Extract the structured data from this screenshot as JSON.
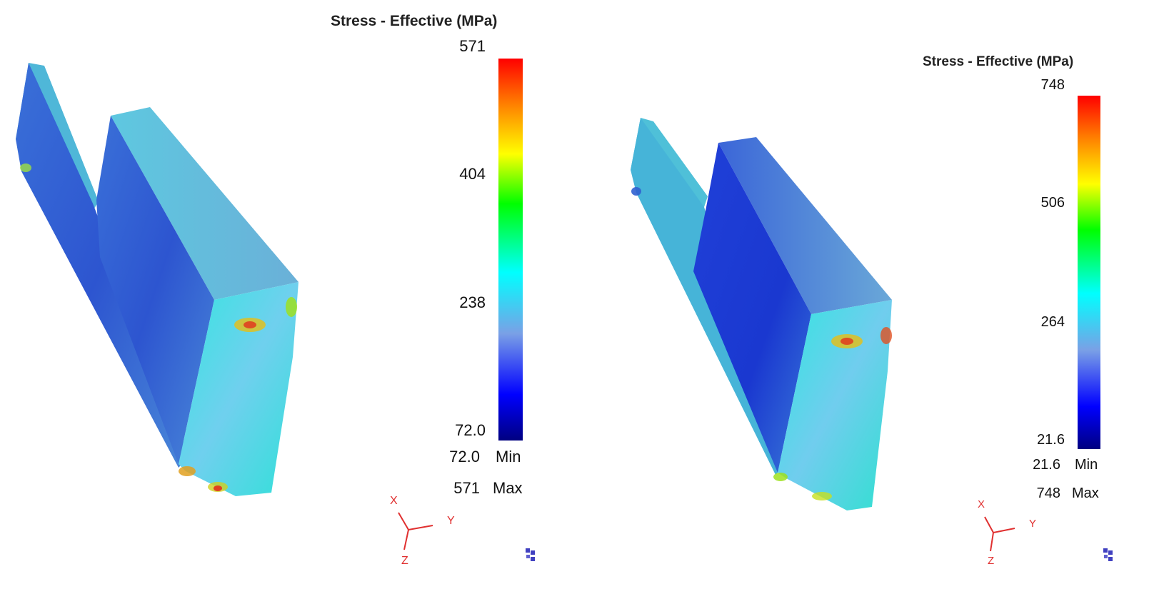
{
  "panels": [
    {
      "legend": {
        "title": "Stress - Effective (MPa)",
        "ticks": [
          "571",
          "404",
          "238",
          "72.0"
        ],
        "min_value": "72.0",
        "min_label": "Min",
        "max_value": "571",
        "max_label": "Max"
      },
      "triad": {
        "x": "X",
        "y": "Y",
        "z": "Z"
      }
    },
    {
      "legend": {
        "title": "Stress - Effective (MPa)",
        "ticks": [
          "748",
          "506",
          "264",
          "21.6"
        ],
        "min_value": "21.6",
        "min_label": "Min",
        "max_value": "748",
        "max_label": "Max"
      },
      "triad": {
        "x": "X",
        "y": "Y",
        "z": "Z"
      }
    }
  ],
  "colors": {
    "triad": "#e03030",
    "cube_icon": "#4040c0"
  }
}
